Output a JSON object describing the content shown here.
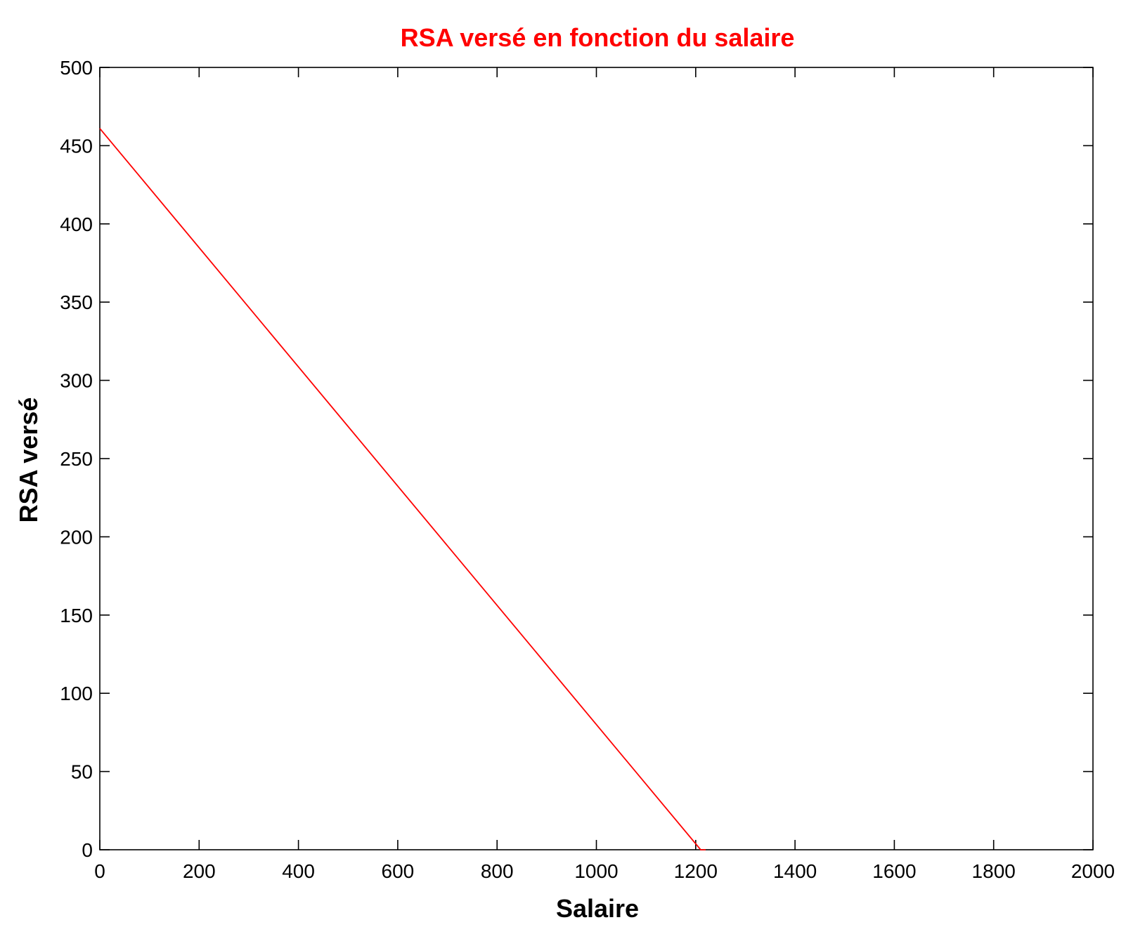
{
  "chart_data": {
    "type": "line",
    "title": "RSA versé en fonction du salaire",
    "xlabel": "Salaire",
    "ylabel": "RSA versé",
    "xlim": [
      0,
      2000
    ],
    "ylim": [
      0,
      500
    ],
    "x_ticks": [
      0,
      200,
      400,
      600,
      800,
      1000,
      1200,
      1400,
      1600,
      1800,
      2000
    ],
    "y_ticks": [
      0,
      50,
      100,
      150,
      200,
      250,
      300,
      350,
      400,
      450,
      500
    ],
    "grid": false,
    "legend": "none",
    "series": [
      {
        "color": "#ff0000",
        "x": [
          0,
          1210,
          1220
        ],
        "y": [
          461,
          0,
          0
        ]
      }
    ]
  },
  "colors": {
    "title": "#ff0000",
    "axes": "#000000",
    "line": "#ff0000"
  }
}
